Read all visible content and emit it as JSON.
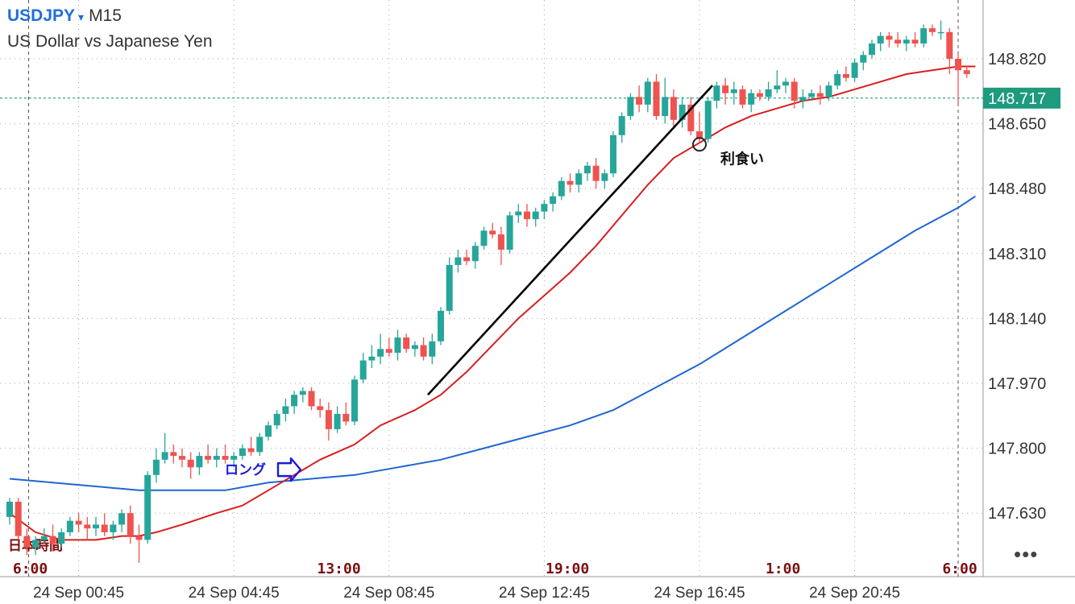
{
  "header": {
    "symbol": "USDJPY",
    "caret": "▾",
    "timeframe": "M15",
    "description": "US Dollar vs Japanese Yen"
  },
  "colors": {
    "bull": "#26a69a",
    "bear": "#ef5350",
    "ma_fast": "#d81e1e",
    "ma_slow": "#1f66d1",
    "price_line": "#1e9a7e",
    "grid": "#a8a8a8",
    "annotation_blue": "#1a1ad9",
    "annotation_dark": "#7a1010"
  },
  "more_icon": "more-horizontal-icon",
  "chart_data": {
    "type": "candlestick",
    "symbol": "USDJPY",
    "timeframe": "M15",
    "ylim": [
      147.55,
      148.95
    ],
    "y_ticks": [
      "148.820",
      "148.650",
      "148.480",
      "148.310",
      "148.140",
      "147.970",
      "147.800",
      "147.630"
    ],
    "current_price": "148.717",
    "x_labels": [
      "24 Sep 00:45",
      "24 Sep 04:45",
      "24 Sep 08:45",
      "24 Sep 12:45",
      "24 Sep 16:45",
      "24 Sep 20:45"
    ],
    "jst_labels": [
      "6:00",
      "13:00",
      "19:00",
      "1:00",
      "6:00"
    ],
    "jst_caption": "日本時間",
    "grid": true,
    "candles": [
      [
        147.62,
        147.67,
        147.6,
        147.66
      ],
      [
        147.66,
        147.67,
        147.56,
        147.57
      ],
      [
        147.57,
        147.59,
        147.52,
        147.54
      ],
      [
        147.54,
        147.57,
        147.52,
        147.56
      ],
      [
        147.56,
        147.59,
        147.55,
        147.57
      ],
      [
        147.57,
        147.6,
        147.53,
        147.55
      ],
      [
        147.55,
        147.59,
        147.54,
        147.58
      ],
      [
        147.58,
        147.62,
        147.57,
        147.61
      ],
      [
        147.61,
        147.63,
        147.58,
        147.6
      ],
      [
        147.6,
        147.62,
        147.56,
        147.59
      ],
      [
        147.59,
        147.62,
        147.57,
        147.6
      ],
      [
        147.6,
        147.63,
        147.57,
        147.58
      ],
      [
        147.58,
        147.61,
        147.56,
        147.6
      ],
      [
        147.6,
        147.64,
        147.58,
        147.63
      ],
      [
        147.63,
        147.65,
        147.55,
        147.57
      ],
      [
        147.57,
        147.6,
        147.5,
        147.56
      ],
      [
        147.56,
        147.74,
        147.55,
        147.73
      ],
      [
        147.73,
        147.8,
        147.71,
        147.77
      ],
      [
        147.77,
        147.84,
        147.76,
        147.79
      ],
      [
        147.79,
        147.81,
        147.76,
        147.78
      ],
      [
        147.78,
        147.8,
        147.75,
        147.77
      ],
      [
        147.77,
        147.79,
        147.72,
        147.75
      ],
      [
        147.75,
        147.79,
        147.73,
        147.78
      ],
      [
        147.78,
        147.81,
        147.76,
        147.77
      ],
      [
        147.77,
        147.8,
        147.75,
        147.78
      ],
      [
        147.78,
        147.81,
        147.76,
        147.77
      ],
      [
        147.77,
        147.79,
        147.75,
        147.78
      ],
      [
        147.78,
        147.81,
        147.77,
        147.8
      ],
      [
        147.8,
        147.83,
        147.78,
        147.79
      ],
      [
        147.79,
        147.84,
        147.78,
        147.83
      ],
      [
        147.83,
        147.87,
        147.82,
        147.86
      ],
      [
        147.86,
        147.9,
        147.85,
        147.89
      ],
      [
        147.89,
        147.93,
        147.87,
        147.91
      ],
      [
        147.91,
        147.95,
        147.89,
        147.94
      ],
      [
        147.94,
        147.96,
        147.92,
        147.95
      ],
      [
        147.95,
        147.96,
        147.9,
        147.91
      ],
      [
        147.91,
        147.93,
        147.88,
        147.9
      ],
      [
        147.9,
        147.92,
        147.82,
        147.85
      ],
      [
        147.85,
        147.91,
        147.84,
        147.89
      ],
      [
        147.89,
        147.92,
        147.86,
        147.87
      ],
      [
        147.87,
        147.99,
        147.86,
        147.98
      ],
      [
        147.98,
        148.05,
        147.97,
        148.03
      ],
      [
        148.03,
        148.07,
        148.01,
        148.04
      ],
      [
        148.04,
        148.1,
        148.02,
        148.06
      ],
      [
        148.06,
        148.09,
        148.04,
        148.05
      ],
      [
        148.05,
        148.11,
        148.03,
        148.09
      ],
      [
        148.09,
        148.1,
        148.05,
        148.06
      ],
      [
        148.06,
        148.08,
        148.04,
        148.07
      ],
      [
        148.07,
        148.09,
        148.03,
        148.04
      ],
      [
        148.04,
        148.1,
        148.02,
        148.08
      ],
      [
        148.08,
        148.17,
        148.07,
        148.16
      ],
      [
        148.16,
        148.3,
        148.15,
        148.28
      ],
      [
        148.28,
        148.32,
        148.26,
        148.3
      ],
      [
        148.3,
        148.32,
        148.28,
        148.29
      ],
      [
        148.29,
        148.34,
        148.27,
        148.33
      ],
      [
        148.33,
        148.38,
        148.32,
        148.37
      ],
      [
        148.37,
        148.39,
        148.35,
        148.36
      ],
      [
        148.36,
        148.38,
        148.28,
        148.32
      ],
      [
        148.32,
        148.42,
        148.31,
        148.41
      ],
      [
        148.41,
        148.44,
        148.39,
        148.42
      ],
      [
        148.42,
        148.44,
        148.38,
        148.4
      ],
      [
        148.4,
        148.43,
        148.38,
        148.42
      ],
      [
        148.42,
        148.45,
        148.4,
        148.44
      ],
      [
        148.44,
        148.47,
        148.42,
        148.46
      ],
      [
        148.46,
        148.51,
        148.45,
        148.5
      ],
      [
        148.5,
        148.52,
        148.47,
        148.49
      ],
      [
        148.49,
        148.53,
        148.47,
        148.52
      ],
      [
        148.52,
        148.55,
        148.5,
        148.54
      ],
      [
        148.54,
        148.56,
        148.48,
        148.5
      ],
      [
        148.5,
        148.53,
        148.48,
        148.52
      ],
      [
        148.52,
        148.63,
        148.51,
        148.62
      ],
      [
        148.62,
        148.68,
        148.6,
        148.67
      ],
      [
        148.67,
        148.73,
        148.66,
        148.72
      ],
      [
        148.72,
        148.75,
        148.68,
        148.7
      ],
      [
        148.7,
        148.77,
        148.68,
        148.76
      ],
      [
        148.76,
        148.78,
        148.66,
        148.67
      ],
      [
        148.67,
        148.77,
        148.65,
        148.72
      ],
      [
        148.72,
        148.74,
        148.64,
        148.66
      ],
      [
        148.66,
        148.72,
        148.64,
        148.7
      ],
      [
        148.7,
        148.72,
        148.62,
        148.63
      ],
      [
        148.63,
        148.68,
        148.6,
        148.61
      ],
      [
        148.61,
        148.72,
        148.6,
        148.71
      ],
      [
        148.71,
        148.76,
        148.69,
        148.75
      ],
      [
        148.75,
        148.77,
        148.7,
        148.73
      ],
      [
        148.73,
        148.76,
        148.7,
        148.74
      ],
      [
        148.74,
        148.75,
        148.69,
        148.7
      ],
      [
        148.7,
        148.74,
        148.68,
        148.73
      ],
      [
        148.73,
        148.74,
        148.71,
        148.72
      ],
      [
        148.72,
        148.76,
        148.71,
        148.74
      ],
      [
        148.74,
        148.79,
        148.73,
        148.75
      ],
      [
        148.75,
        148.77,
        148.73,
        148.76
      ],
      [
        148.76,
        148.77,
        148.69,
        148.71
      ],
      [
        148.71,
        148.74,
        148.69,
        148.72
      ],
      [
        148.72,
        148.74,
        148.71,
        148.73
      ],
      [
        148.73,
        148.75,
        148.7,
        148.72
      ],
      [
        148.72,
        148.76,
        148.71,
        148.75
      ],
      [
        148.75,
        148.79,
        148.74,
        148.78
      ],
      [
        148.78,
        148.8,
        148.76,
        148.77
      ],
      [
        148.77,
        148.82,
        148.76,
        148.81
      ],
      [
        148.81,
        148.84,
        148.79,
        148.83
      ],
      [
        148.83,
        148.87,
        148.82,
        148.86
      ],
      [
        148.86,
        148.89,
        148.84,
        148.88
      ],
      [
        148.88,
        148.89,
        148.85,
        148.87
      ],
      [
        148.87,
        148.89,
        148.85,
        148.86
      ],
      [
        148.86,
        148.88,
        148.84,
        148.87
      ],
      [
        148.87,
        148.89,
        148.85,
        148.86
      ],
      [
        148.86,
        148.91,
        148.85,
        148.9
      ],
      [
        148.9,
        148.91,
        148.88,
        148.89
      ],
      [
        148.89,
        148.92,
        148.87,
        148.89
      ],
      [
        148.89,
        148.9,
        148.78,
        148.82
      ],
      [
        148.82,
        148.84,
        148.7,
        148.79
      ],
      [
        148.79,
        148.8,
        148.77,
        148.78
      ]
    ],
    "ma_fast": {
      "x": [
        0,
        3,
        6,
        10,
        13,
        15,
        17,
        20,
        24,
        27,
        30,
        33,
        36,
        40,
        43,
        47,
        50,
        53,
        56,
        59,
        62,
        65,
        68,
        71,
        74,
        77,
        80,
        83,
        86,
        89,
        92,
        95,
        98,
        101,
        104,
        107,
        110,
        112
      ],
      "y": [
        147.63,
        147.58,
        147.56,
        147.56,
        147.57,
        147.57,
        147.58,
        147.6,
        147.63,
        147.65,
        147.69,
        147.73,
        147.77,
        147.81,
        147.86,
        147.9,
        147.94,
        148.0,
        148.07,
        148.14,
        148.2,
        148.26,
        148.33,
        148.41,
        148.49,
        148.56,
        148.6,
        148.64,
        148.67,
        148.69,
        148.71,
        148.72,
        148.74,
        148.76,
        148.78,
        148.79,
        148.8,
        148.8
      ]
    },
    "ma_slow": {
      "x": [
        0,
        5,
        10,
        15,
        20,
        25,
        30,
        35,
        40,
        45,
        50,
        55,
        60,
        65,
        70,
        75,
        80,
        85,
        90,
        95,
        100,
        105,
        110,
        112
      ],
      "y": [
        147.72,
        147.71,
        147.7,
        147.69,
        147.69,
        147.69,
        147.71,
        147.72,
        147.73,
        147.75,
        147.77,
        147.8,
        147.83,
        147.86,
        147.9,
        147.96,
        148.02,
        148.09,
        148.16,
        148.23,
        148.3,
        148.37,
        148.43,
        148.46
      ]
    },
    "trendline": {
      "from": [
        48.5,
        147.94
      ],
      "to": [
        81.5,
        148.75
      ]
    },
    "annotations": {
      "long_label": "ロング",
      "long_index": 30,
      "profit_label": "利食い",
      "profit_index": 80
    }
  }
}
